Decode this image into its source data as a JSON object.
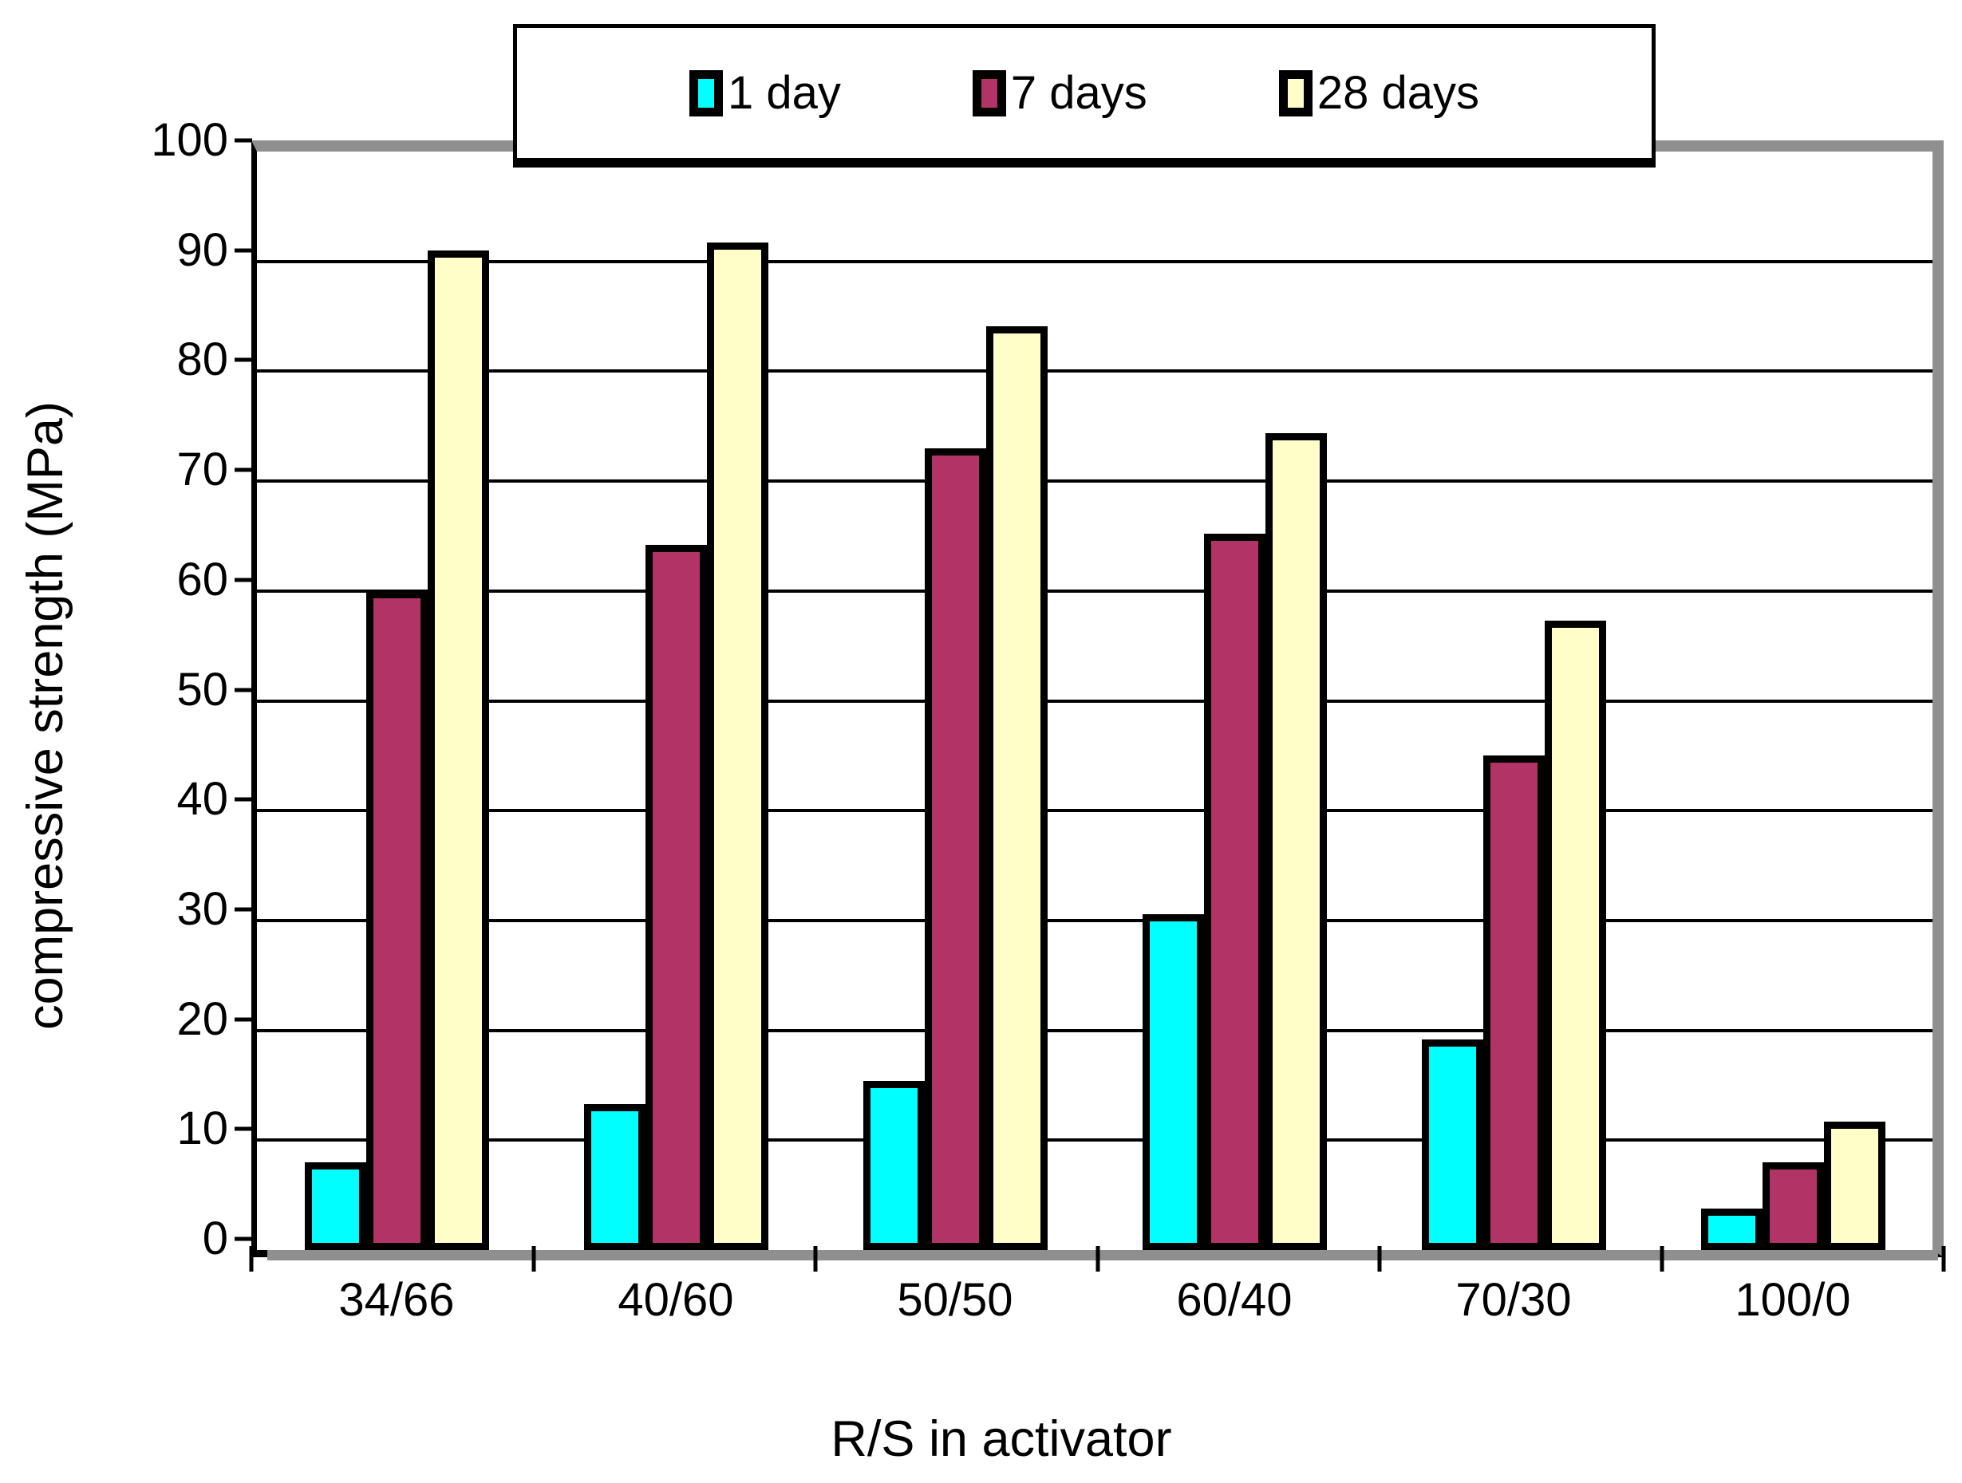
{
  "chart_data": {
    "type": "bar",
    "title": "",
    "xlabel": "R/S in activator",
    "ylabel": "compressive strength (MPa)",
    "categories": [
      "34/66",
      "40/60",
      "50/50",
      "60/40",
      "70/30",
      "100/0"
    ],
    "series": [
      {
        "name": "1 day",
        "color": "#00ffff",
        "values": [
          8,
          13.3,
          15.4,
          30.6,
          19.2,
          3.8
        ]
      },
      {
        "name": "7 days",
        "color": "#b23366",
        "values": [
          60,
          64.2,
          73,
          65.2,
          45,
          8
        ]
      },
      {
        "name": "28 days",
        "color": "#fffdc8",
        "values": [
          91,
          91.7,
          84.1,
          74.4,
          57.3,
          11.7
        ]
      }
    ],
    "ylim": [
      0,
      100
    ],
    "yticks": [
      0,
      10,
      20,
      30,
      40,
      50,
      60,
      70,
      80,
      90,
      100
    ],
    "grid": "horizontal-black",
    "legend_position": "top",
    "plot_border": "gray-shadow-top-right-bottom"
  },
  "colors": {
    "background": "#ffffff",
    "gridline": "#000000",
    "bar_outline": "#000000",
    "shadow_gray": "#8f8f8f"
  }
}
